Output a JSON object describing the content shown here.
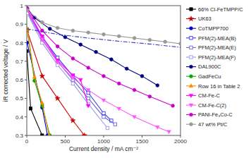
{
  "chart_data": {
    "type": "line",
    "xlabel": "Current density / mA cm⁻²",
    "ylabel": "iR corrected voltage / V",
    "xlim": [
      0,
      2000
    ],
    "ylim": [
      0.3,
      1.0
    ],
    "xticks": [
      0,
      500,
      1000,
      1500,
      2000
    ],
    "yticks": [
      0.3,
      0.4,
      0.5,
      0.6,
      0.7,
      0.8,
      0.9,
      1.0
    ],
    "grid": false,
    "legend": "right",
    "series": [
      {
        "name": "66% Cl-FeTMPP/C",
        "color": "#000000",
        "marker": "square",
        "line_style": "solid",
        "x": [
          0,
          50,
          200
        ],
        "values": [
          0.755,
          0.445,
          0.3
        ]
      },
      {
        "name": "UK63",
        "color": "#cc0000",
        "marker": "star",
        "line_style": "solid",
        "x": [
          5,
          200,
          400,
          600,
          750
        ],
        "values": [
          0.865,
          0.62,
          0.5,
          0.38,
          0.3
        ]
      },
      {
        "name": "CoTMPP700",
        "color": "#0000cc",
        "marker": "circle",
        "line_style": "solid",
        "x": [
          5,
          200,
          270
        ],
        "values": [
          0.8,
          0.45,
          0.3
        ]
      },
      {
        "name": "PFM(2)-MEA(B)",
        "color": "#3333ff",
        "marker": "square-open",
        "line_style": "solid",
        "x": [
          5,
          200,
          400,
          600,
          800,
          1000,
          1100
        ],
        "values": [
          0.97,
          0.83,
          0.72,
          0.62,
          0.53,
          0.42,
          0.38
        ]
      },
      {
        "name": "PFM(2)-MEA(E)",
        "color": "#6666cc",
        "marker": "square-open",
        "line_style": "solid",
        "x": [
          5,
          200,
          400,
          600,
          800,
          1000,
          1150
        ],
        "values": [
          0.965,
          0.82,
          0.7,
          0.6,
          0.5,
          0.4,
          0.36
        ]
      },
      {
        "name": "PFM(2)-MEA(F)",
        "color": "#9999ee",
        "marker": "square-open",
        "line_style": "solid",
        "x": [
          5,
          200,
          400,
          600,
          800,
          1050
        ],
        "values": [
          0.96,
          0.8,
          0.68,
          0.58,
          0.47,
          0.34
        ]
      },
      {
        "name": "DAL900C",
        "color": "#000080",
        "marker": "circle",
        "line_style": "solid",
        "x": [
          5,
          100,
          300,
          500,
          700,
          900,
          1100,
          1300,
          1500,
          1700
        ],
        "values": [
          0.985,
          0.935,
          0.875,
          0.83,
          0.79,
          0.75,
          0.71,
          0.66,
          0.62,
          0.57
        ]
      },
      {
        "name": "GadFeCu",
        "color": "#00aa00",
        "marker": "circle",
        "line_style": "solid",
        "x": [
          5,
          100,
          200,
          300
        ],
        "values": [
          0.875,
          0.595,
          0.46,
          0.3
        ]
      },
      {
        "name": "Row 16 in Table 2",
        "color": "#ff8800",
        "marker": "triangle-up",
        "line_style": "solid",
        "x": [
          5,
          100,
          200,
          290
        ],
        "values": [
          0.875,
          0.615,
          0.475,
          0.3
        ]
      },
      {
        "name": "CM-Fe-C",
        "color": "#ff00ff",
        "marker": "triangle-down",
        "line_style": "solid",
        "x": [
          5,
          200,
          400,
          600,
          700,
          800
        ],
        "values": [
          0.98,
          0.835,
          0.705,
          0.625,
          0.6,
          0.46
        ]
      },
      {
        "name": "CM-Fe-C(2)",
        "color": "#ff55ff",
        "marker": "triangle-down",
        "line_style": "solid",
        "x": [
          5,
          200,
          400,
          600,
          800,
          1000,
          1200,
          1400,
          1700,
          1850
        ],
        "values": [
          0.975,
          0.815,
          0.695,
          0.61,
          0.545,
          0.49,
          0.445,
          0.4,
          0.345,
          0.32
        ]
      },
      {
        "name": "PANI-Fe₃Co-C",
        "color": "#cc00cc",
        "marker": "circle",
        "line_style": "solid",
        "x": [
          5,
          200,
          400,
          600,
          800,
          1000,
          1200,
          1400,
          1600,
          1900
        ],
        "values": [
          0.985,
          0.865,
          0.78,
          0.715,
          0.665,
          0.62,
          0.58,
          0.545,
          0.51,
          0.46
        ]
      },
      {
        "name": "47 wt% Pt/C",
        "color": "#999999",
        "marker": "circle",
        "line_style": "solid",
        "x": [
          5,
          200,
          400,
          600,
          800,
          1000,
          1200,
          1400,
          1600,
          1800,
          2000
        ],
        "values": [
          0.975,
          0.91,
          0.88,
          0.865,
          0.855,
          0.845,
          0.835,
          0.825,
          0.815,
          0.805,
          0.795
        ]
      },
      {
        "color": "#3333cc",
        "marker": "none",
        "line_style": "dashdot",
        "x": [
          0,
          400,
          800,
          1200,
          1600,
          2000
        ],
        "values": [
          0.875,
          0.845,
          0.825,
          0.808,
          0.793,
          0.775
        ]
      }
    ]
  }
}
